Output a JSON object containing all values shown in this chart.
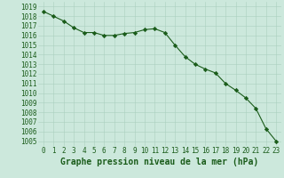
{
  "x": [
    0,
    1,
    2,
    3,
    4,
    5,
    6,
    7,
    8,
    9,
    10,
    11,
    12,
    13,
    14,
    15,
    16,
    17,
    18,
    19,
    20,
    21,
    22,
    23
  ],
  "y": [
    1018.5,
    1018.0,
    1017.5,
    1016.8,
    1016.3,
    1016.3,
    1016.0,
    1016.0,
    1016.2,
    1016.3,
    1016.6,
    1016.7,
    1016.3,
    1015.0,
    1013.8,
    1013.0,
    1012.5,
    1012.1,
    1011.0,
    1010.3,
    1009.5,
    1008.4,
    1006.3,
    1005.0
  ],
  "line_color": "#1a5c1a",
  "marker": "D",
  "marker_size": 2.2,
  "background_color": "#cce8dc",
  "grid_color": "#aacfbf",
  "ylabel_ticks": [
    1005,
    1006,
    1007,
    1008,
    1009,
    1010,
    1011,
    1012,
    1013,
    1014,
    1015,
    1016,
    1017,
    1018,
    1019
  ],
  "ylim": [
    1004.5,
    1019.5
  ],
  "xlim": [
    -0.5,
    23.5
  ],
  "xlabel": "Graphe pression niveau de la mer (hPa)",
  "xlabel_fontsize": 7,
  "tick_fontsize": 5.5,
  "label_color": "#1a5c1a",
  "linewidth": 0.8
}
